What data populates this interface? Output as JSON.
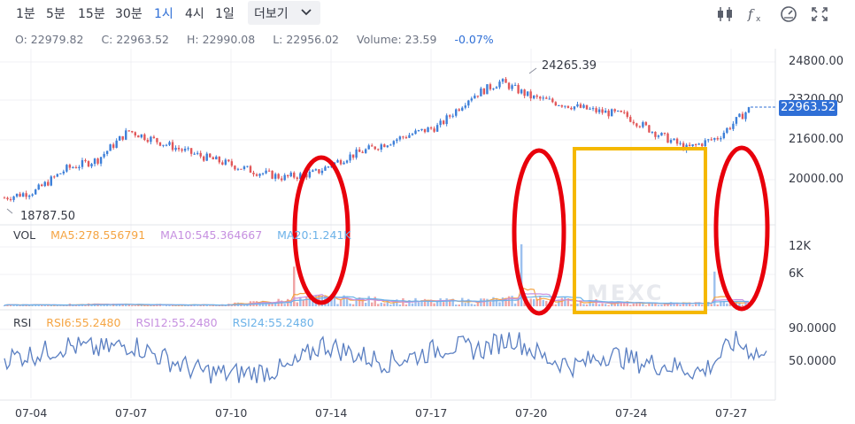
{
  "toolbar": {
    "intervals": [
      "1분",
      "5분",
      "15분",
      "30분",
      "1시",
      "4시",
      "1일"
    ],
    "active_interval": "1시",
    "more_label": "더보기",
    "icons": [
      "candlestick-icon",
      "indicator-fx-icon",
      "gauge-icon",
      "fullscreen-icon"
    ]
  },
  "ohlc": {
    "open": "O: 22979.82",
    "close": "C: 22963.52",
    "high": "H: 22990.08",
    "low": "L: 22956.02",
    "volume": "Volume: 23.59",
    "change": "-0.07%"
  },
  "price_panel": {
    "high_marker": "24265.39",
    "low_marker": "18787.50",
    "current_price": "22963.52",
    "y_ticks": [
      "24800.00",
      "23200.00",
      "21600.00",
      "20000.00"
    ]
  },
  "volume_panel": {
    "title": "VOL",
    "ma5": "MA5:278.556791",
    "ma10": "MA10:545.364667",
    "ma20": "MA20:1.241K",
    "y_ticks": [
      "12K",
      "6K"
    ],
    "watermark": "MEXC"
  },
  "rsi_panel": {
    "title": "RSI",
    "rsi6": "RSI6:55.2480",
    "rsi12": "RSI12:55.2480",
    "rsi24": "RSI24:55.2480",
    "y_ticks": [
      "90.0000",
      "50.0000"
    ]
  },
  "x_ticks": [
    "07-04",
    "07-07",
    "07-10",
    "07-14",
    "07-17",
    "07-20",
    "07-24",
    "07-27"
  ],
  "colors": {
    "up": "#3d7fd8",
    "down": "#e15759",
    "ma5": "#f5a442",
    "ma10": "#c690e0",
    "ma20": "#6cb2e8",
    "rsi": "#5a7fc2",
    "highlight_red": "#e8000b",
    "highlight_yellow": "#f5b800"
  },
  "chart_data": [
    {
      "type": "line",
      "name": "price",
      "x": [
        "07-04",
        "07-05",
        "07-06",
        "07-07",
        "07-08",
        "07-09",
        "07-10",
        "07-11",
        "07-12",
        "07-13",
        "07-14",
        "07-15",
        "07-16",
        "07-17",
        "07-18",
        "07-19",
        "07-20",
        "07-21",
        "07-22",
        "07-23",
        "07-24",
        "07-25",
        "07-26",
        "07-27",
        "07-28"
      ],
      "values": [
        19000,
        19300,
        20300,
        20700,
        22000,
        21500,
        21000,
        20600,
        20200,
        19900,
        20100,
        20800,
        21300,
        21800,
        22200,
        23500,
        24200,
        23500,
        23200,
        22900,
        22700,
        21900,
        21200,
        21700,
        22960
      ],
      "ylim": [
        18500,
        25400
      ]
    },
    {
      "type": "bar",
      "name": "volume",
      "x": [
        "07-04",
        "07-07",
        "07-10",
        "07-14",
        "07-17",
        "07-20",
        "07-24",
        "07-27"
      ],
      "values": [
        300,
        350,
        250,
        1500,
        900,
        1400,
        500,
        700
      ],
      "spikes": [
        {
          "x": "07-13",
          "value": 8000
        },
        {
          "x": "07-20",
          "value": 12500
        },
        {
          "x": "07-27",
          "value": 7000
        }
      ],
      "ylim": [
        0,
        15000
      ]
    },
    {
      "type": "line",
      "name": "RSI",
      "x": [
        "07-04",
        "07-05",
        "07-06",
        "07-07",
        "07-08",
        "07-09",
        "07-10",
        "07-11",
        "07-12",
        "07-13",
        "07-14",
        "07-15",
        "07-16",
        "07-17",
        "07-18",
        "07-19",
        "07-20",
        "07-21",
        "07-22",
        "07-23",
        "07-24",
        "07-25",
        "07-26",
        "07-27",
        "07-28"
      ],
      "values": [
        55,
        60,
        70,
        65,
        72,
        55,
        40,
        35,
        38,
        42,
        72,
        60,
        50,
        58,
        70,
        65,
        80,
        55,
        45,
        60,
        50,
        45,
        38,
        75,
        55
      ],
      "ylim": [
        20,
        100
      ]
    }
  ]
}
